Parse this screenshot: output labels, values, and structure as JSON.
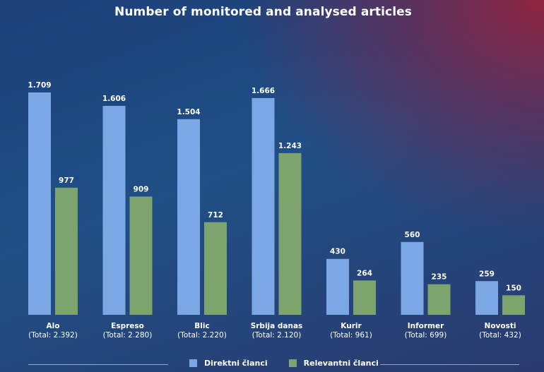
{
  "chart_data": {
    "type": "bar",
    "title": "Number of monitored and analysed articles",
    "categories": [
      "Alo",
      "Espreso",
      "Blic",
      "Srbija danas",
      "Kurir",
      "Informer",
      "Novosti"
    ],
    "totals": [
      "(Total: 2.392)",
      "(Total: 2.280)",
      "(Total: 2.220)",
      "(Total: 2.120)",
      "(Total: 961)",
      "(Total: 699)",
      "(Total: 432)"
    ],
    "series": [
      {
        "name": "Direktni članci",
        "color": "#7ba7e4",
        "values": [
          1709,
          1606,
          1504,
          1666,
          430,
          560,
          259
        ],
        "labels": [
          "1.709",
          "1.606",
          "1.504",
          "1.666",
          "430",
          "560",
          "259"
        ]
      },
      {
        "name": "Relevantni članci",
        "color": "#7da46e",
        "values": [
          977,
          909,
          712,
          1243,
          264,
          235,
          150
        ],
        "labels": [
          "977",
          "909",
          "712",
          "1.243",
          "264",
          "235",
          "150"
        ]
      }
    ],
    "ylim": [
      0,
      1709
    ],
    "xlabel": "",
    "ylabel": "",
    "grid": false,
    "legend": "bottom-center"
  }
}
